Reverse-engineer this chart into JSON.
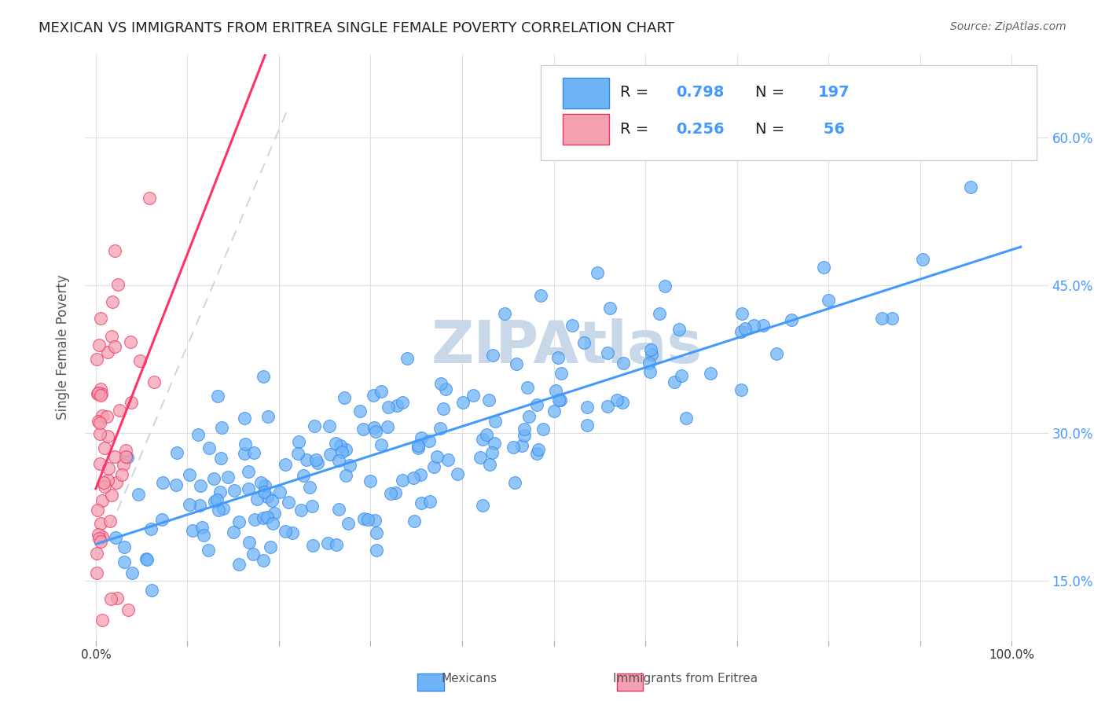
{
  "title": "MEXICAN VS IMMIGRANTS FROM ERITREA SINGLE FEMALE POVERTY CORRELATION CHART",
  "source": "Source: ZipAtlas.com",
  "ylabel": "Single Female Poverty",
  "legend_label1": "Mexicans",
  "legend_label2": "Immigrants from Eritrea",
  "R1": "0.798",
  "N1": "197",
  "R2": "0.256",
  "N2": "56",
  "color_blue": "#6eb4f7",
  "color_pink": "#f4a0b0",
  "line_color_blue": "#4499ff",
  "line_color_pink": "#ff3366",
  "edge_color_blue": "#3388ee",
  "edge_color_pink": "#ee3366",
  "watermark": "ZIPAtlas",
  "watermark_color": "#c8d8e8",
  "background_color": "#ffffff",
  "grid_color": "#dddddd",
  "title_color": "#222222",
  "axis_label_color": "#555555",
  "tick_color_blue": "#4499ff",
  "ytick_values": [
    0.15,
    0.3,
    0.45,
    0.6
  ],
  "ytick_labels": [
    "15.0%",
    "30.0%",
    "45.0%",
    "60.0%"
  ],
  "seed1": 42,
  "seed2": 99
}
